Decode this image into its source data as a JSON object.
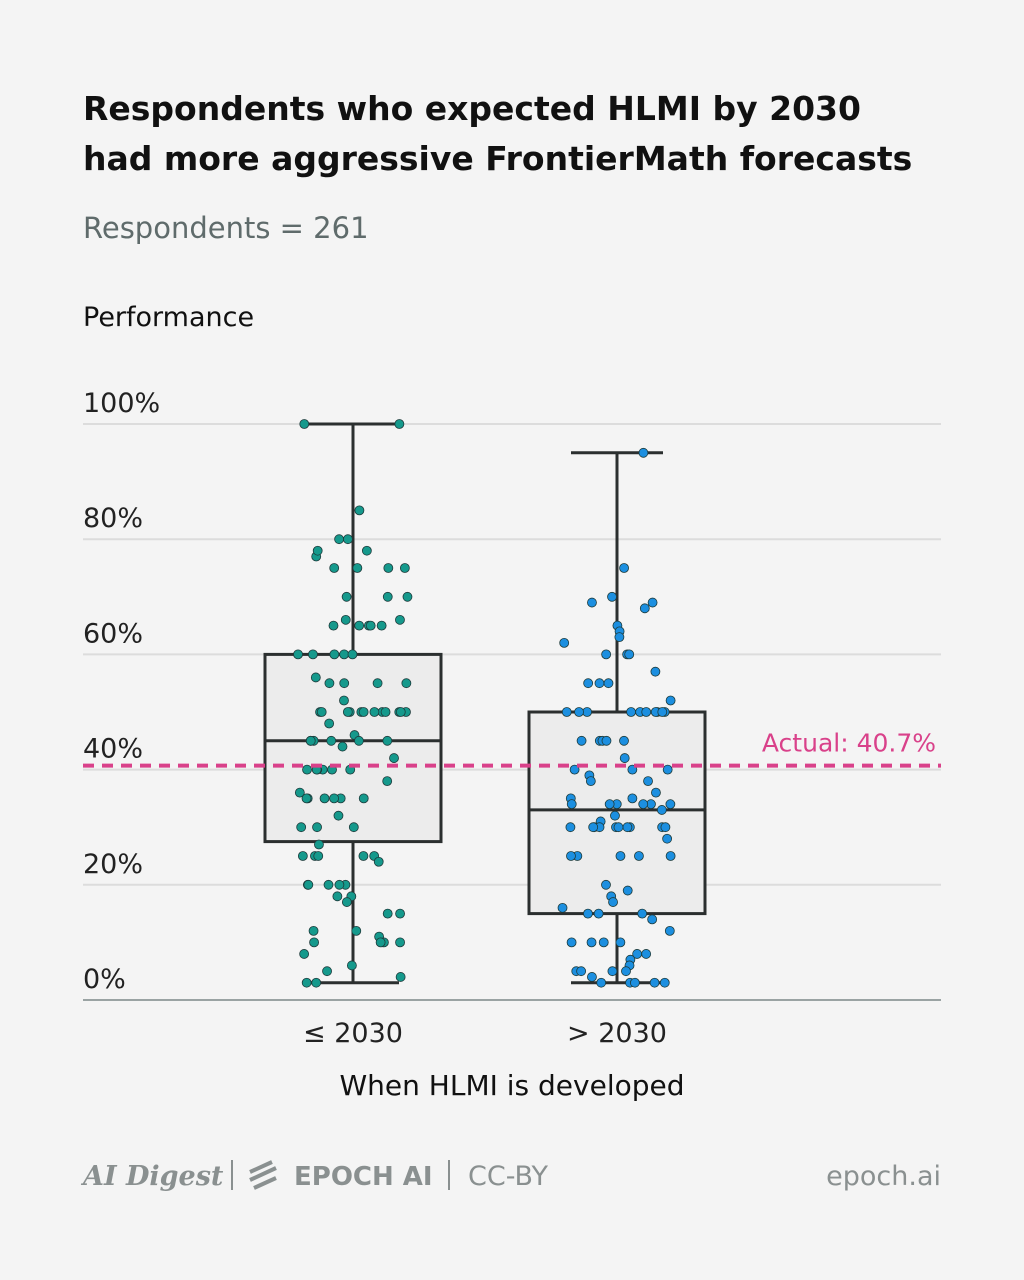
{
  "chart_data": {
    "type": "box",
    "title_lines": [
      "Respondents who expected HLMI by 2030",
      "had more aggressive FrontierMath forecasts"
    ],
    "subtitle": "Respondents = 261",
    "y_label": "Performance",
    "x_label": "When HLMI is developed",
    "categories": [
      "≤ 2030",
      "> 2030"
    ],
    "ylim": [
      0,
      100
    ],
    "yticks": [
      {
        "value": 0,
        "label": "0%"
      },
      {
        "value": 20,
        "label": "20%"
      },
      {
        "value": 40,
        "label": "40%"
      },
      {
        "value": 60,
        "label": "60%"
      },
      {
        "value": 80,
        "label": "80%"
      },
      {
        "value": 100,
        "label": "100%"
      }
    ],
    "grid": true,
    "reference_line": {
      "value": 40.7,
      "label": "Actual: 40.7%",
      "color": "#d9418a"
    },
    "boxes": [
      {
        "color": "#15998c",
        "whisker_low": 3,
        "q1": 27.5,
        "median": 45,
        "q3": 60,
        "whisker_high": 100,
        "points": [
          100,
          100,
          85,
          80,
          80,
          78,
          77,
          75,
          75,
          75,
          75,
          78,
          70,
          70,
          70,
          66,
          66,
          65,
          65,
          65,
          65,
          65,
          60,
          60,
          60,
          60,
          60,
          56,
          55,
          55,
          55,
          55,
          52,
          50,
          50,
          50,
          50,
          50,
          50,
          50,
          50,
          50,
          50,
          50,
          50,
          48,
          46,
          45,
          45,
          45,
          45,
          45,
          45,
          44,
          42,
          40,
          40,
          40,
          40,
          40,
          40,
          38,
          36,
          35,
          35,
          35,
          35,
          35,
          35,
          32,
          30,
          30,
          30,
          27,
          25,
          25,
          25,
          25,
          25,
          24,
          20,
          20,
          20,
          20,
          20,
          18,
          18,
          17,
          15,
          15,
          12,
          12,
          11,
          10,
          10,
          10,
          10,
          8,
          6,
          5,
          4,
          3,
          3
        ]
      },
      {
        "color": "#1c8fe0",
        "whisker_low": 3,
        "q1": 15,
        "median": 33,
        "q3": 50,
        "whisker_high": 95,
        "points": [
          95,
          75,
          70,
          69,
          69,
          68,
          65,
          64,
          63,
          62,
          60,
          60,
          60,
          57,
          55,
          55,
          55,
          52,
          50,
          50,
          50,
          50,
          50,
          50,
          50,
          50,
          50,
          50,
          45,
          45,
          45,
          45,
          45,
          42,
          40,
          40,
          40,
          39,
          38,
          38,
          36,
          35,
          35,
          34,
          34,
          34,
          34,
          34,
          34,
          33,
          32,
          31,
          30,
          30,
          30,
          30,
          30,
          30,
          30,
          30,
          30,
          30,
          28,
          25,
          25,
          25,
          25,
          25,
          20,
          19,
          18,
          17,
          16,
          15,
          15,
          15,
          14,
          12,
          10,
          10,
          10,
          10,
          8,
          8,
          7,
          6,
          5,
          5,
          5,
          5,
          4,
          3,
          3,
          3,
          3,
          3
        ]
      }
    ],
    "footer": {
      "left": [
        "AI Digest",
        "EPOCH AI",
        "CC-BY"
      ],
      "right": "epoch.ai"
    }
  }
}
